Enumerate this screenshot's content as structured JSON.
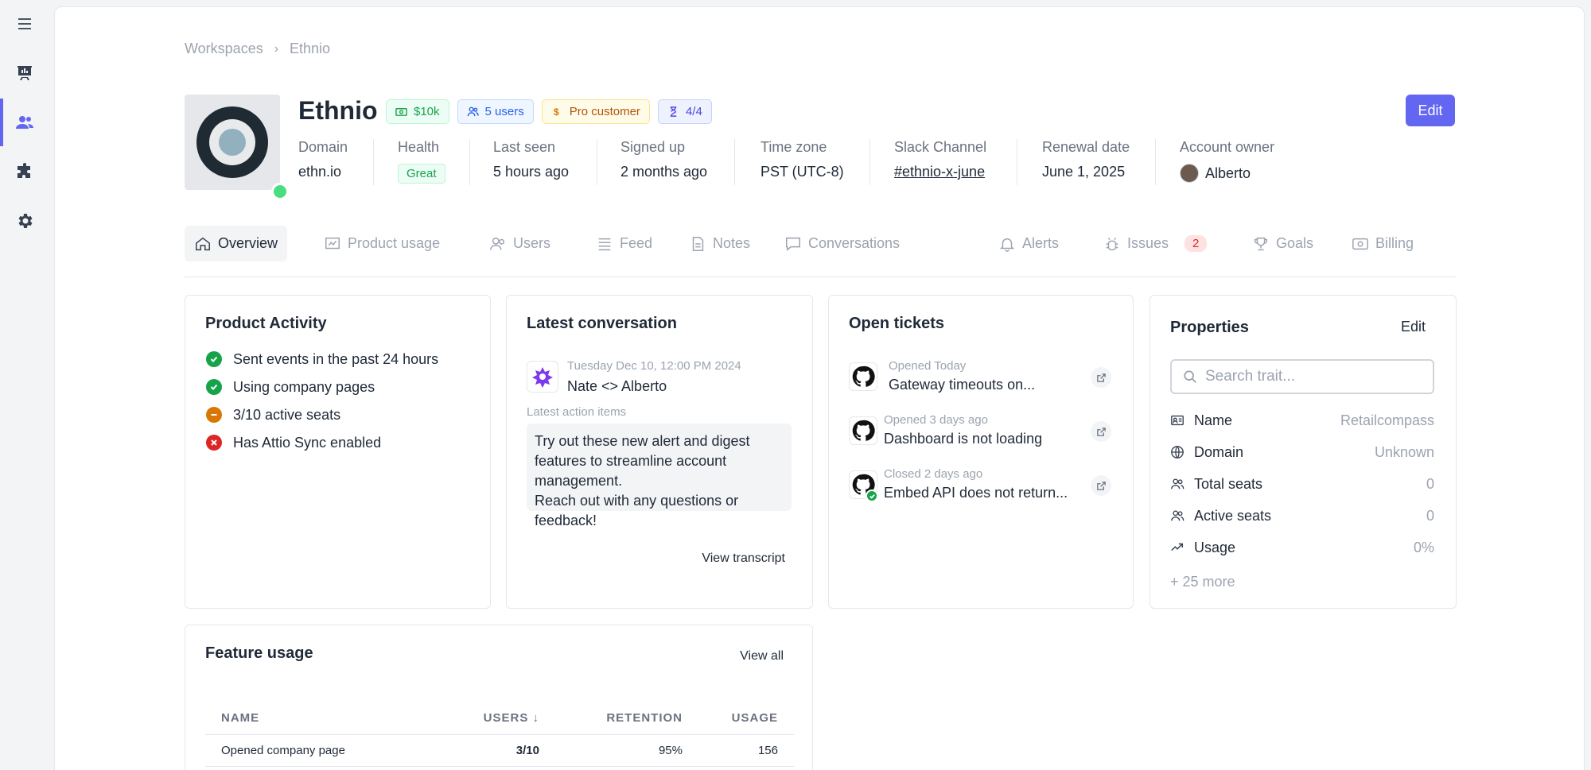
{
  "breadcrumb": {
    "root": "Workspaces",
    "separator": "›",
    "current": "Ethnio"
  },
  "company": {
    "name": "Ethnio",
    "badges": [
      {
        "icon": "money-icon",
        "label": "$10k"
      },
      {
        "icon": "users-icon",
        "label": "5 users"
      },
      {
        "icon": "dollar-icon",
        "label": "Pro customer"
      },
      {
        "icon": "hourglass-icon",
        "label": "4/4"
      }
    ],
    "edit_label": "Edit"
  },
  "meta": {
    "domain": {
      "label": "Domain",
      "value": "ethn.io"
    },
    "health": {
      "label": "Health",
      "value": "Great"
    },
    "last_seen": {
      "label": "Last seen",
      "value": "5 hours ago"
    },
    "signed_up": {
      "label": "Signed up",
      "value": "2 months ago"
    },
    "timezone": {
      "label": "Time zone",
      "value": "PST (UTC-8)"
    },
    "slack": {
      "label": "Slack Channel",
      "value": "#ethnio-x-june"
    },
    "renewal": {
      "label": "Renewal date",
      "value": "June 1, 2025"
    },
    "owner": {
      "label": "Account owner",
      "value": "Alberto"
    }
  },
  "tabs": [
    {
      "label": "Overview",
      "icon": "home-icon"
    },
    {
      "label": "Product usage",
      "icon": "chart-icon"
    },
    {
      "label": "Users",
      "icon": "users-icon"
    },
    {
      "label": "Feed",
      "icon": "feed-icon"
    },
    {
      "label": "Notes",
      "icon": "note-icon"
    },
    {
      "label": "Conversations",
      "icon": "chat-icon"
    },
    {
      "label": "Alerts",
      "icon": "bell-icon"
    },
    {
      "label": "Issues",
      "icon": "bug-icon",
      "count": "2"
    },
    {
      "label": "Goals",
      "icon": "trophy-icon"
    },
    {
      "label": "Billing",
      "icon": "billing-icon"
    }
  ],
  "product_activity": {
    "title": "Product Activity",
    "items": [
      {
        "label": "Sent events in the past 24 hours",
        "status": "ok"
      },
      {
        "label": "Using company pages",
        "status": "ok"
      },
      {
        "label": "3/10 active seats",
        "status": "warning"
      },
      {
        "label": "Has Attio Sync enabled",
        "status": "error"
      }
    ]
  },
  "latest_conversation": {
    "title": "Latest conversation",
    "date": "Tuesday Dec 10, 12:00 PM 2024",
    "conversation_title": "Nate <> Alberto",
    "action_label": "Latest action items",
    "action_text": "Try out these new alert and digest features to streamline account management.\nReach out with any questions or feedback!",
    "link": "View transcript"
  },
  "open_tickets": {
    "title": "Open tickets",
    "items": [
      {
        "status": "Opened Today",
        "title": "Gateway timeouts on..."
      },
      {
        "status": "Opened 3 days ago",
        "title": "Dashboard is not loading"
      },
      {
        "status": "Closed 2 days ago",
        "title": "Embed API does not return..."
      }
    ]
  },
  "properties": {
    "title": "Properties",
    "edit_label": "Edit",
    "search_placeholder": "Search trait...",
    "rows": [
      {
        "name": "Name",
        "value": "Retailcompass",
        "icon": "id-card-icon"
      },
      {
        "name": "Domain",
        "value": "Unknown",
        "icon": "globe-icon"
      },
      {
        "name": "Total seats",
        "value": "0",
        "icon": "users-icon"
      },
      {
        "name": "Active seats",
        "value": "0",
        "icon": "users-icon"
      },
      {
        "name": "Usage",
        "value": "0%",
        "icon": "trend-up-icon"
      }
    ],
    "more": "+ 25 more"
  },
  "feature_usage": {
    "title": "Feature usage",
    "view_all": "View all",
    "columns": [
      "NAME",
      "USERS ↓",
      "RETENTION",
      "USAGE"
    ],
    "rows": [
      {
        "name": "Opened company page",
        "users": "3/10",
        "retention": "95%",
        "usage": "156"
      }
    ]
  },
  "colors": {
    "accent": "#6366f1",
    "success": "#16a34a",
    "warning": "#d97706",
    "danger": "#dc2626"
  }
}
